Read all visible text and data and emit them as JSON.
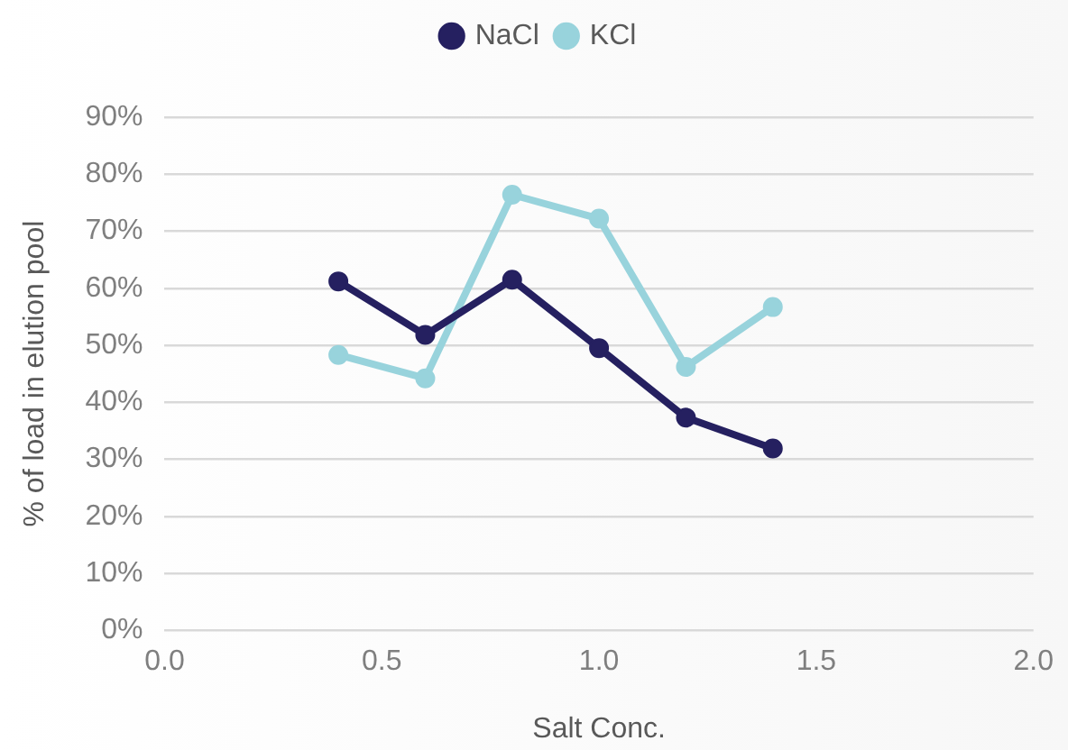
{
  "chart_data": {
    "type": "line",
    "xlabel": "Salt Conc.",
    "ylabel": "% of load in elution pool",
    "x": [
      0.4,
      0.6,
      0.8,
      1.0,
      1.2,
      1.4
    ],
    "series": [
      {
        "name": "NaCl",
        "color": "#252060",
        "values": [
          61.2,
          51.8,
          61.5,
          49.5,
          37.3,
          31.9
        ]
      },
      {
        "name": "KCl",
        "color": "#98d3dc",
        "values": [
          48.3,
          44.2,
          76.4,
          72.2,
          46.2,
          56.7
        ]
      }
    ],
    "xlim": [
      0,
      2
    ],
    "xticks": [
      {
        "value": 0,
        "label": "0.0"
      },
      {
        "value": 0.5,
        "label": "0.5"
      },
      {
        "value": 1,
        "label": "1.0"
      },
      {
        "value": 1.5,
        "label": "1.5"
      },
      {
        "value": 2,
        "label": "2.0"
      }
    ],
    "ylim": [
      0,
      90
    ],
    "yticks": [
      {
        "value": 0,
        "label": "0%"
      },
      {
        "value": 10,
        "label": "10%"
      },
      {
        "value": 20,
        "label": "20%"
      },
      {
        "value": 30,
        "label": "30%"
      },
      {
        "value": 40,
        "label": "40%"
      },
      {
        "value": 50,
        "label": "50%"
      },
      {
        "value": 60,
        "label": "60%"
      },
      {
        "value": 70,
        "label": "70%"
      },
      {
        "value": 80,
        "label": "80%"
      },
      {
        "value": 90,
        "label": "90%"
      }
    ],
    "grid": "y",
    "legend": "top",
    "marker": "circle",
    "line_style": "solid"
  }
}
